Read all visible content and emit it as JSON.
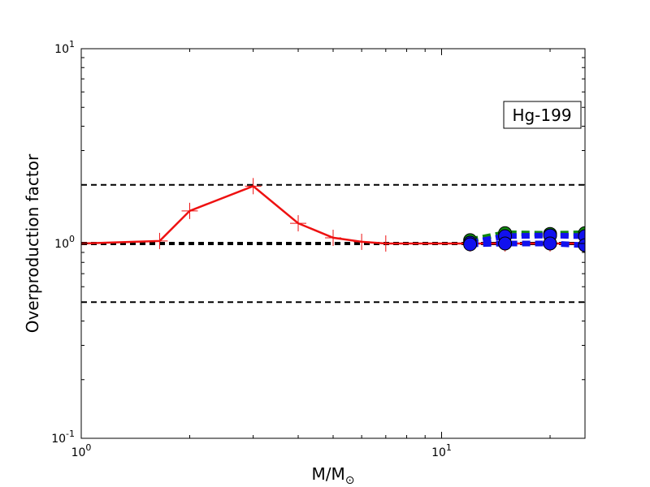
{
  "chart_data": {
    "type": "line",
    "title": "",
    "xlabel": "M/M",
    "xlabel_subscript": "⊙",
    "ylabel": "Overproduction factor",
    "xscale": "log",
    "yscale": "log",
    "xlim": [
      1,
      25
    ],
    "ylim": [
      0.1,
      10
    ],
    "x_ticks": [
      {
        "value": 1,
        "base": "10",
        "exp": "0"
      },
      {
        "value": 10,
        "base": "10",
        "exp": "1"
      }
    ],
    "y_ticks": [
      {
        "value": 0.1,
        "base": "10",
        "exp": "-1"
      },
      {
        "value": 1,
        "base": "10",
        "exp": "0"
      },
      {
        "value": 10,
        "base": "10",
        "exp": "1"
      }
    ],
    "grid": false,
    "annotation": "Hg-199",
    "annotation_position": "upper-right",
    "reference_lines": [
      {
        "y": 2.0,
        "style": "dashed",
        "color": "#000000",
        "width": 2
      },
      {
        "y": 1.0,
        "style": "dashed",
        "color": "#000000",
        "width": 4
      },
      {
        "y": 0.5,
        "style": "dashed",
        "color": "#000000",
        "width": 2
      }
    ],
    "series": [
      {
        "style": "solid",
        "color": "#ee1111",
        "marker": "plus",
        "x": [
          1.0,
          1.65,
          2.0,
          3.0,
          4.0,
          5.0,
          6.0,
          7.0,
          12.0,
          15.0,
          20.0,
          25.0
        ],
        "y": [
          1.0,
          1.03,
          1.47,
          1.97,
          1.27,
          1.07,
          1.02,
          1.0,
          1.0,
          1.0,
          1.0,
          1.0
        ]
      },
      {
        "style": "dashed",
        "color": "#118811",
        "marker": "circle",
        "marker_color": "#118811",
        "x": [
          12.0,
          15.0,
          20.0,
          25.0
        ],
        "y": [
          1.04,
          1.13,
          1.12,
          1.13
        ]
      },
      {
        "style": "dashed",
        "color": "#1111ee",
        "marker": "circle",
        "marker_color": "#1111ee",
        "x": [
          12.0,
          15.0,
          20.0,
          25.0
        ],
        "y": [
          1.01,
          1.09,
          1.1,
          1.09
        ]
      },
      {
        "style": "dashed",
        "color": "#1111ee",
        "marker": "circle",
        "marker_color": "#1111ee",
        "x": [
          12.0,
          15.0,
          20.0,
          25.0
        ],
        "y": [
          0.99,
          1.0,
          1.0,
          0.98
        ]
      }
    ]
  }
}
